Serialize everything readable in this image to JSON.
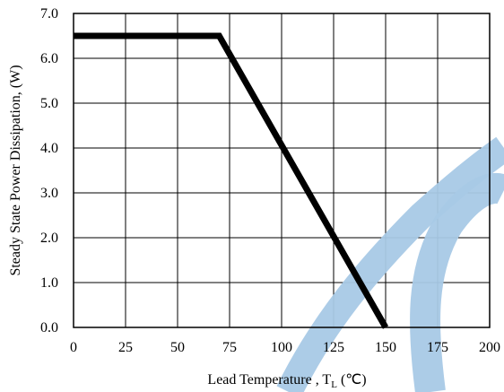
{
  "chart_data": {
    "type": "line",
    "title": "",
    "xlabel": "Lead Temperature , T",
    "xlabel_sub": "L",
    "xlabel_unit": "(℃)",
    "ylabel": "Steady State Power Dissipation, (W)",
    "xlim": [
      0,
      200
    ],
    "ylim": [
      0,
      7
    ],
    "grid": true,
    "x_ticks": [
      0,
      25,
      50,
      75,
      100,
      125,
      150,
      175,
      200
    ],
    "x_tick_labels": [
      "0",
      "25",
      "50",
      "75",
      "100",
      "125",
      "150",
      "175",
      "200"
    ],
    "y_ticks": [
      0,
      1,
      2,
      3,
      4,
      5,
      6,
      7
    ],
    "y_tick_labels": [
      "0.0",
      "1.0",
      "2.0",
      "3.0",
      "4.0",
      "5.0",
      "6.0",
      "7.0"
    ],
    "series": [
      {
        "x": [
          0,
          70,
          150
        ],
        "y": [
          6.5,
          6.5,
          0
        ]
      }
    ],
    "colors": {
      "line": "#000000",
      "watermark": "#a8c9e6",
      "grid": "#000000"
    }
  }
}
